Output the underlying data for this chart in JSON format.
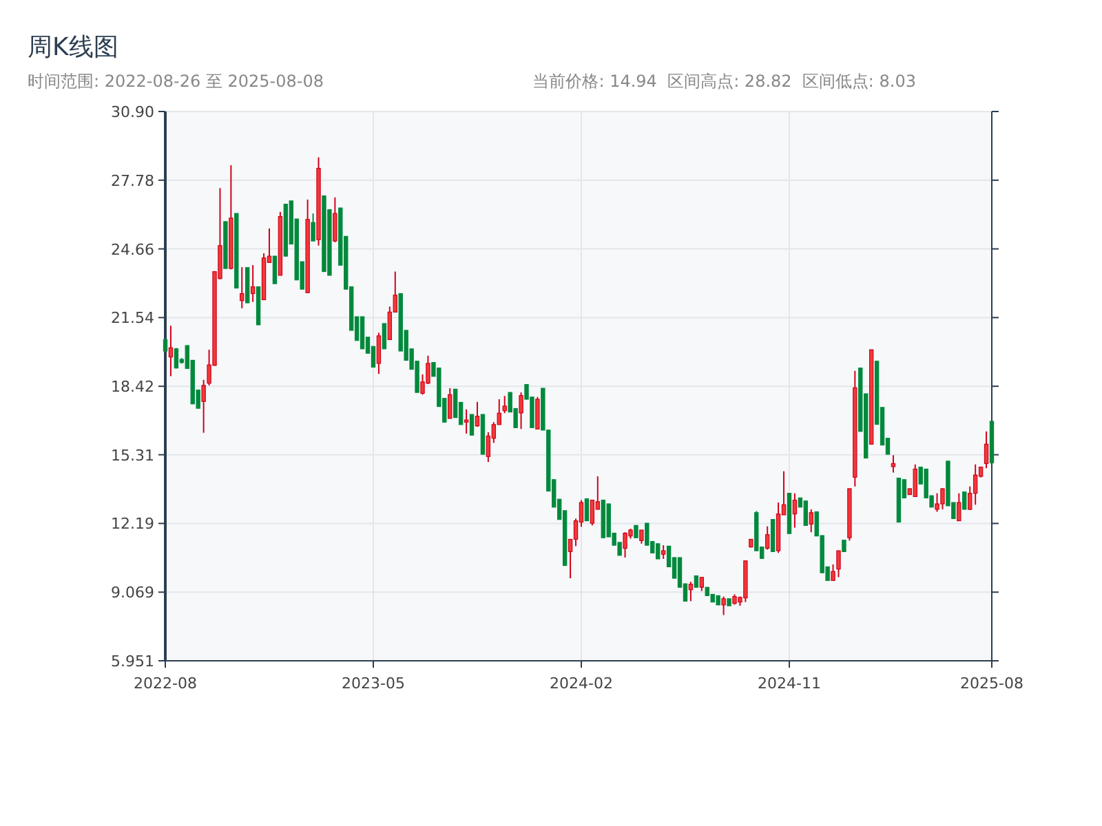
{
  "chart_data": {
    "type": "candlestick",
    "title": "周K线图",
    "subtitle": "时间范围: 2022-08-26 至 2025-08-08",
    "annotations": [
      "当前价格: 14.94  区间高点: 28.82  区间低点: 8.03"
    ],
    "categories": [
      "2022-08",
      null,
      null,
      null,
      null,
      null,
      null,
      null,
      null,
      null,
      null,
      null,
      null,
      null,
      null,
      null,
      null,
      null,
      null,
      null,
      null,
      null,
      null,
      null,
      null,
      null,
      null,
      null,
      null,
      null,
      null,
      null,
      null,
      null,
      null,
      null,
      null,
      null,
      "2023-05",
      null,
      null,
      null,
      null,
      null,
      null,
      null,
      null,
      null,
      null,
      null,
      null,
      null,
      null,
      null,
      null,
      null,
      null,
      null,
      null,
      null,
      null,
      null,
      null,
      null,
      null,
      null,
      null,
      null,
      null,
      null,
      null,
      null,
      null,
      null,
      null,
      null,
      "2024-02",
      null,
      null,
      null,
      null,
      null,
      null,
      null,
      null,
      null,
      null,
      null,
      null,
      null,
      null,
      null,
      null,
      null,
      null,
      null,
      null,
      null,
      null,
      null,
      null,
      null,
      null,
      null,
      null,
      null,
      null,
      null,
      null,
      null,
      null,
      null,
      null,
      null,
      "2024-11",
      null,
      null,
      null,
      null,
      null,
      null,
      null,
      null,
      null,
      null,
      null,
      null,
      null,
      null,
      null,
      null,
      null,
      null,
      null,
      null,
      null,
      null,
      null,
      null,
      null,
      null,
      null,
      null,
      null,
      null,
      null,
      null,
      null,
      null,
      null,
      null,
      "2025-08"
    ],
    "ohlc": [
      [
        20.54,
        20.6,
        20.0,
        20.02
      ],
      [
        19.75,
        21.17,
        18.88,
        20.17
      ],
      [
        20.12,
        20.16,
        19.23,
        19.25
      ],
      [
        19.64,
        19.7,
        19.45,
        19.5
      ],
      [
        20.27,
        20.27,
        19.23,
        19.23
      ],
      [
        19.6,
        19.6,
        17.62,
        17.62
      ],
      [
        18.25,
        18.25,
        17.42,
        17.42
      ],
      [
        17.73,
        18.71,
        16.31,
        18.46
      ],
      [
        18.56,
        20.08,
        18.46,
        19.39
      ],
      [
        19.37,
        23.63,
        19.35,
        23.63
      ],
      [
        23.31,
        27.42,
        23.29,
        24.81
      ],
      [
        25.9,
        25.9,
        23.77,
        23.77
      ],
      [
        23.77,
        28.46,
        23.73,
        26.06
      ],
      [
        26.27,
        26.27,
        22.88,
        22.88
      ],
      [
        22.31,
        23.83,
        21.96,
        22.63
      ],
      [
        23.81,
        23.81,
        22.21,
        22.21
      ],
      [
        22.63,
        23.92,
        22.25,
        22.94
      ],
      [
        22.94,
        22.94,
        21.21,
        21.21
      ],
      [
        22.35,
        24.46,
        22.35,
        24.25
      ],
      [
        24.04,
        25.59,
        24.04,
        24.33
      ],
      [
        24.33,
        24.33,
        23.08,
        23.08
      ],
      [
        23.46,
        26.34,
        23.46,
        26.13
      ],
      [
        26.69,
        26.69,
        24.33,
        24.33
      ],
      [
        26.84,
        26.84,
        24.88,
        24.88
      ],
      [
        26.02,
        26.02,
        23.25,
        23.25
      ],
      [
        24.08,
        24.08,
        22.83,
        22.83
      ],
      [
        22.67,
        26.9,
        22.67,
        26.0
      ],
      [
        25.86,
        26.27,
        25.02,
        25.02
      ],
      [
        25.08,
        28.82,
        24.81,
        28.32
      ],
      [
        27.07,
        27.07,
        23.63,
        23.63
      ],
      [
        26.44,
        26.44,
        23.46,
        23.46
      ],
      [
        25.02,
        27.0,
        24.96,
        26.27
      ],
      [
        26.52,
        26.52,
        23.92,
        23.92
      ],
      [
        25.23,
        25.23,
        22.83,
        22.83
      ],
      [
        22.94,
        22.94,
        20.96,
        20.96
      ],
      [
        21.58,
        21.58,
        20.5,
        20.5
      ],
      [
        21.58,
        21.58,
        20.12,
        20.12
      ],
      [
        20.65,
        20.65,
        19.92,
        19.92
      ],
      [
        20.23,
        20.23,
        19.29,
        19.29
      ],
      [
        19.46,
        20.85,
        18.98,
        20.71
      ],
      [
        21.27,
        21.27,
        20.12,
        20.12
      ],
      [
        20.54,
        22.04,
        20.54,
        21.79
      ],
      [
        21.79,
        23.63,
        21.79,
        22.56
      ],
      [
        22.63,
        22.63,
        20.02,
        20.02
      ],
      [
        20.96,
        20.96,
        19.6,
        19.6
      ],
      [
        20.12,
        20.12,
        19.19,
        19.19
      ],
      [
        19.56,
        19.56,
        18.14,
        18.14
      ],
      [
        18.1,
        18.96,
        18.04,
        18.62
      ],
      [
        18.56,
        19.81,
        18.52,
        19.46
      ],
      [
        19.5,
        19.5,
        18.87,
        18.87
      ],
      [
        19.25,
        19.25,
        17.5,
        17.5
      ],
      [
        17.87,
        17.87,
        16.79,
        16.79
      ],
      [
        16.96,
        18.33,
        16.96,
        18.04
      ],
      [
        18.29,
        18.29,
        17.0,
        17.0
      ],
      [
        17.69,
        17.69,
        16.68,
        16.68
      ],
      [
        16.79,
        17.37,
        16.27,
        16.89
      ],
      [
        17.14,
        17.14,
        16.2,
        16.2
      ],
      [
        16.62,
        17.71,
        16.58,
        17.06
      ],
      [
        17.14,
        17.14,
        15.33,
        15.33
      ],
      [
        15.23,
        16.33,
        14.98,
        16.16
      ],
      [
        16.06,
        16.79,
        15.85,
        16.68
      ],
      [
        16.68,
        17.83,
        16.68,
        17.2
      ],
      [
        17.31,
        17.98,
        17.2,
        17.52
      ],
      [
        18.14,
        18.14,
        17.25,
        17.25
      ],
      [
        17.41,
        17.41,
        16.54,
        16.54
      ],
      [
        17.21,
        18.14,
        16.48,
        18.0
      ],
      [
        18.5,
        18.5,
        17.83,
        17.83
      ],
      [
        17.93,
        17.93,
        16.54,
        16.54
      ],
      [
        16.48,
        17.93,
        16.48,
        17.83
      ],
      [
        18.33,
        18.33,
        16.43,
        16.43
      ],
      [
        16.43,
        16.43,
        13.66,
        13.66
      ],
      [
        14.18,
        14.18,
        12.93,
        12.93
      ],
      [
        13.29,
        13.29,
        12.37,
        12.37
      ],
      [
        12.77,
        12.77,
        10.28,
        10.28
      ],
      [
        10.91,
        11.47,
        9.7,
        11.47
      ],
      [
        11.47,
        12.41,
        11.16,
        12.31
      ],
      [
        12.25,
        13.25,
        12.04,
        13.14
      ],
      [
        13.31,
        13.31,
        12.31,
        12.31
      ],
      [
        12.2,
        13.25,
        12.1,
        13.25
      ],
      [
        12.83,
        14.33,
        12.83,
        13.18
      ],
      [
        13.25,
        13.25,
        11.54,
        11.54
      ],
      [
        13.08,
        13.08,
        11.58,
        11.58
      ],
      [
        11.75,
        11.75,
        11.2,
        11.2
      ],
      [
        11.33,
        11.33,
        10.74,
        10.74
      ],
      [
        11.06,
        11.79,
        10.64,
        11.75
      ],
      [
        11.62,
        11.95,
        11.5,
        11.89
      ],
      [
        12.1,
        12.1,
        11.54,
        11.54
      ],
      [
        11.41,
        11.89,
        11.27,
        11.89
      ],
      [
        12.2,
        12.2,
        11.2,
        11.2
      ],
      [
        11.37,
        11.37,
        10.85,
        10.85
      ],
      [
        11.27,
        11.27,
        10.58,
        10.58
      ],
      [
        10.79,
        11.2,
        10.58,
        10.95
      ],
      [
        11.16,
        11.16,
        10.22,
        10.22
      ],
      [
        10.64,
        10.64,
        9.7,
        9.7
      ],
      [
        10.64,
        10.64,
        9.29,
        9.29
      ],
      [
        9.45,
        9.45,
        8.66,
        8.66
      ],
      [
        9.18,
        9.54,
        8.66,
        9.43
      ],
      [
        9.81,
        9.81,
        9.29,
        9.29
      ],
      [
        9.29,
        9.74,
        9.12,
        9.74
      ],
      [
        9.29,
        9.29,
        8.91,
        8.91
      ],
      [
        8.97,
        8.97,
        8.62,
        8.62
      ],
      [
        8.91,
        8.91,
        8.49,
        8.49
      ],
      [
        8.49,
        8.87,
        8.03,
        8.77
      ],
      [
        8.77,
        8.77,
        8.45,
        8.45
      ],
      [
        8.56,
        8.97,
        8.5,
        8.87
      ],
      [
        8.62,
        8.87,
        8.45,
        8.83
      ],
      [
        8.81,
        10.49,
        8.62,
        10.49
      ],
      [
        11.12,
        11.47,
        11.1,
        11.47
      ],
      [
        12.68,
        12.75,
        10.95,
        10.95
      ],
      [
        11.12,
        11.12,
        10.6,
        10.6
      ],
      [
        11.06,
        12.06,
        11.0,
        11.68
      ],
      [
        12.37,
        12.37,
        10.91,
        10.91
      ],
      [
        10.95,
        13.14,
        10.85,
        12.62
      ],
      [
        12.58,
        14.56,
        12.58,
        13.04
      ],
      [
        13.56,
        13.56,
        11.73,
        11.73
      ],
      [
        12.62,
        13.56,
        12.0,
        13.25
      ],
      [
        13.35,
        13.35,
        12.93,
        12.93
      ],
      [
        13.21,
        13.21,
        12.1,
        12.1
      ],
      [
        12.16,
        12.83,
        11.79,
        12.68
      ],
      [
        12.72,
        12.72,
        11.62,
        11.62
      ],
      [
        11.64,
        11.64,
        9.95,
        9.95
      ],
      [
        10.22,
        10.22,
        9.6,
        9.6
      ],
      [
        9.6,
        10.33,
        9.6,
        10.01
      ],
      [
        10.12,
        10.95,
        9.75,
        10.95
      ],
      [
        11.43,
        11.43,
        10.91,
        10.91
      ],
      [
        11.54,
        13.77,
        11.41,
        13.77
      ],
      [
        14.29,
        19.12,
        13.87,
        18.35
      ],
      [
        19.25,
        19.25,
        16.37,
        16.37
      ],
      [
        18.08,
        18.08,
        15.16,
        15.16
      ],
      [
        15.79,
        20.08,
        15.79,
        20.08
      ],
      [
        19.56,
        19.56,
        16.69,
        16.69
      ],
      [
        17.46,
        17.46,
        15.75,
        15.75
      ],
      [
        16.06,
        16.06,
        15.33,
        15.33
      ],
      [
        14.77,
        15.29,
        14.5,
        14.91
      ],
      [
        14.25,
        14.25,
        12.25,
        12.25
      ],
      [
        14.18,
        14.18,
        13.35,
        13.35
      ],
      [
        13.5,
        13.77,
        13.5,
        13.77
      ],
      [
        13.41,
        14.87,
        13.41,
        14.66
      ],
      [
        14.75,
        14.75,
        13.98,
        13.98
      ],
      [
        14.66,
        14.66,
        13.35,
        13.35
      ],
      [
        13.45,
        13.45,
        12.93,
        12.93
      ],
      [
        12.83,
        13.56,
        12.72,
        13.08
      ],
      [
        13.08,
        13.77,
        12.83,
        13.77
      ],
      [
        15.02,
        15.02,
        12.99,
        12.99
      ],
      [
        13.14,
        13.14,
        12.41,
        12.41
      ],
      [
        12.31,
        13.56,
        12.31,
        13.14
      ],
      [
        13.62,
        13.62,
        12.83,
        12.83
      ],
      [
        12.83,
        13.87,
        12.8,
        13.56
      ],
      [
        13.56,
        14.87,
        13.04,
        14.39
      ],
      [
        14.33,
        14.75,
        14.28,
        14.75
      ],
      [
        14.91,
        16.37,
        14.7,
        15.79
      ],
      [
        16.83,
        16.83,
        14.94,
        14.94
      ]
    ],
    "ylim": [
      5.951,
      30.9
    ],
    "yticks": [
      5.951,
      9.069,
      12.19,
      15.31,
      18.42,
      21.54,
      24.66,
      27.78,
      {
        "value": 30.9,
        "label": "30.90"
      }
    ],
    "grid": true
  }
}
